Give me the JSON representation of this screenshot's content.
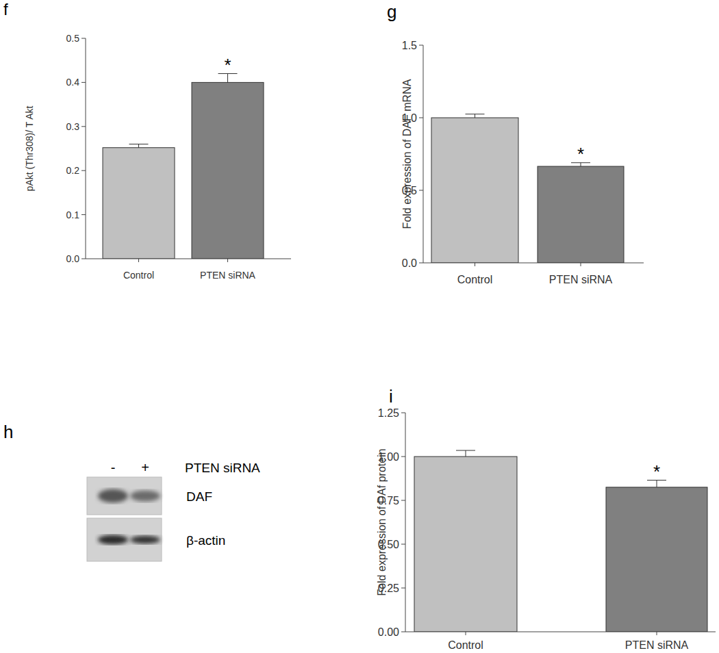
{
  "chart_data": [
    {
      "type": "bar",
      "title": "f",
      "categories": [
        "Control",
        "PTEN siRNA"
      ],
      "values": [
        0.252,
        0.4
      ],
      "errors": [
        0.008,
        0.02
      ],
      "colors": [
        "#c0c0c0",
        "#808080"
      ],
      "y_label": "pAkt (Thr308)/ T Akt",
      "ylim": [
        0,
        0.5
      ],
      "yticks": [
        {
          "value": 0,
          "label": "0.0"
        },
        0.1,
        0.2,
        0.3,
        0.4,
        0.5
      ],
      "annotations": [
        {
          "category": "PTEN siRNA",
          "text": "*"
        }
      ],
      "grid": false
    },
    {
      "type": "bar",
      "title": "g",
      "categories": [
        "Control",
        "PTEN siRNA"
      ],
      "values": [
        1.0,
        0.665
      ],
      "errors": [
        0.025,
        0.025
      ],
      "colors": [
        "#c0c0c0",
        "#808080"
      ],
      "y_label": "Fold expression of DAF mRNA",
      "ylim": [
        0,
        1.5
      ],
      "yticks": [
        {
          "value": 0,
          "label": "0.0"
        },
        0.5,
        {
          "value": 1,
          "label": "1.0"
        },
        1.5
      ],
      "annotations": [
        {
          "category": "PTEN siRNA",
          "text": "*"
        }
      ],
      "grid": false
    },
    {
      "type": "bar",
      "title": "i",
      "categories": [
        "Control",
        "PTEN siRNA"
      ],
      "values": [
        1.0,
        0.825
      ],
      "errors": [
        0.035,
        0.04
      ],
      "colors": [
        "#c0c0c0",
        "#808080"
      ],
      "y_label": "Fold expression of DAf protein",
      "ylim": [
        0,
        1.25
      ],
      "yticks": [
        {
          "value": 0,
          "label": "0.00"
        },
        0.25,
        {
          "value": 0.5,
          "label": "0.50"
        },
        0.75,
        {
          "value": 1,
          "label": "1.00"
        },
        1.25
      ],
      "annotations": [
        {
          "category": "PTEN siRNA",
          "text": "*"
        }
      ],
      "grid": false
    }
  ],
  "blot": {
    "title": "h",
    "lanes": [
      "-",
      "+"
    ],
    "lanes_label": "PTEN siRNA",
    "rows": [
      "DAF",
      "β-actin"
    ]
  }
}
